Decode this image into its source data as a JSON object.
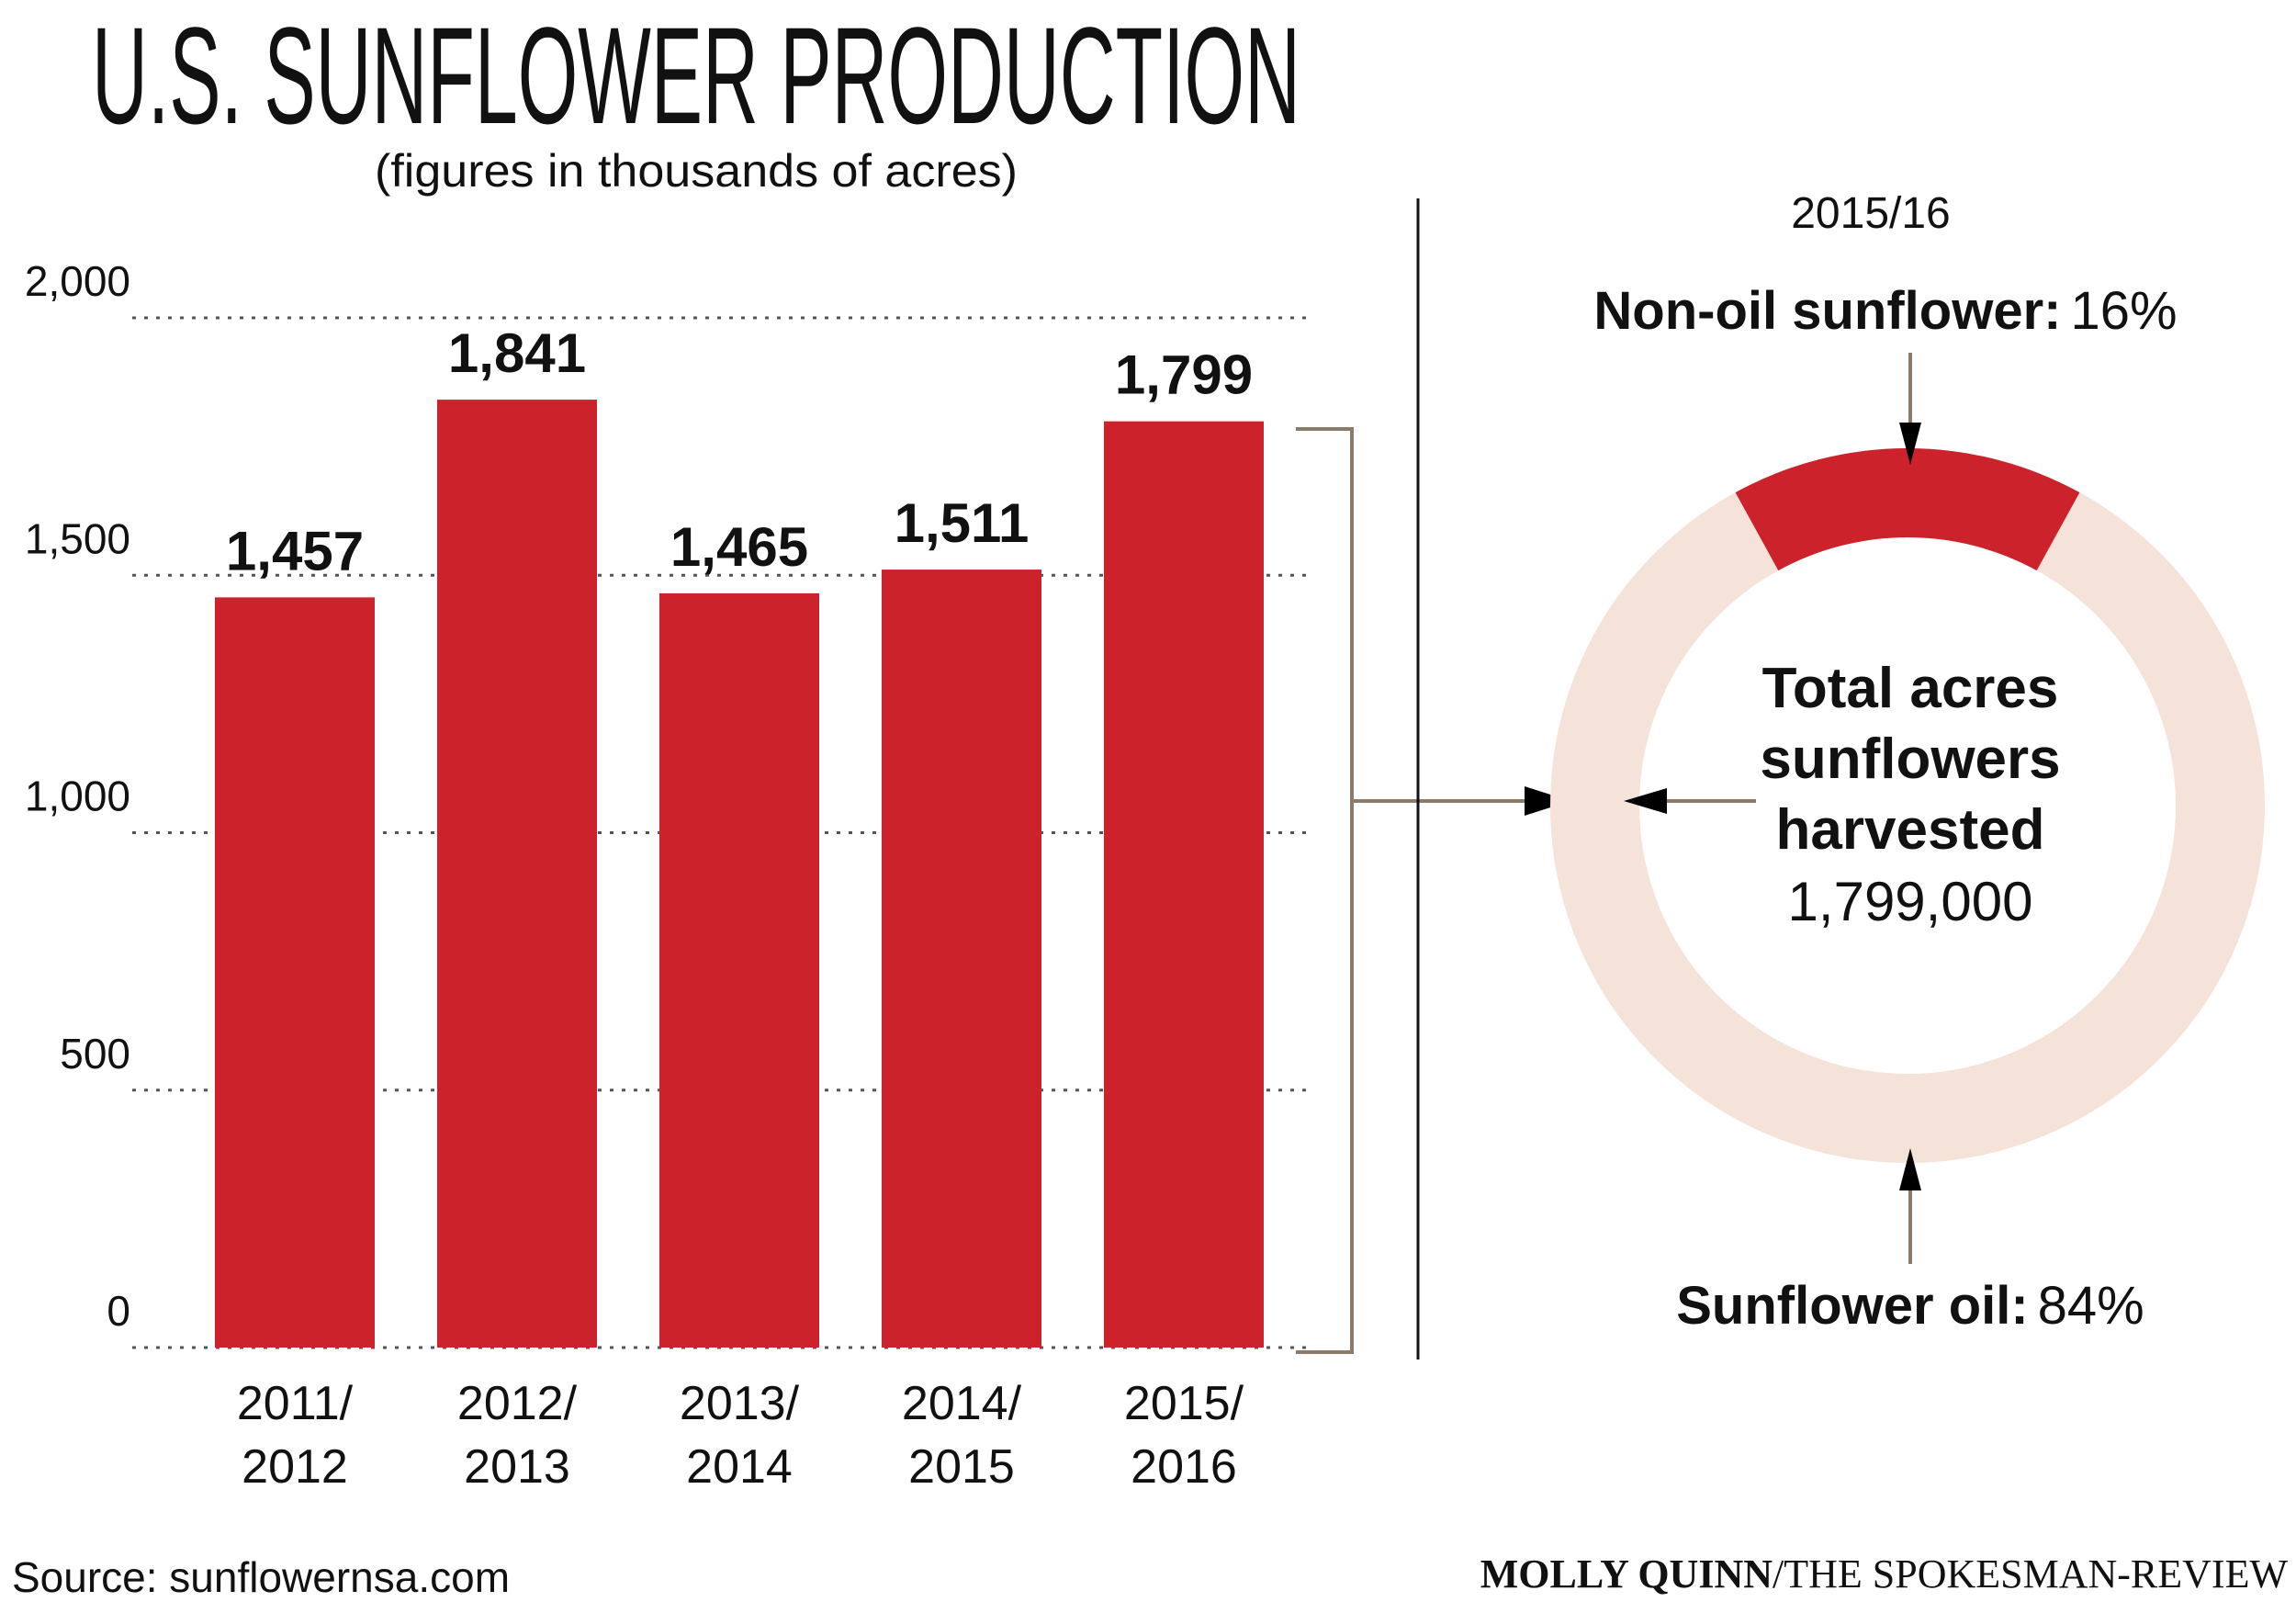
{
  "title": "U.S. SUNFLOWER PRODUCTION",
  "subtitle": "(figures in thousands of acres)",
  "source": "Source: sunflowernsa.com",
  "credit": {
    "name": "MOLLY QUINN",
    "outlet": "/THE SPOKESMAN-REVIEW"
  },
  "colors": {
    "bar": "#cc222b",
    "ring": "#f5e3d9",
    "connector": "#8c7b6b"
  },
  "chart_data": [
    {
      "type": "bar",
      "categories": [
        [
          "2011/",
          "2012"
        ],
        [
          "2012/",
          "2013"
        ],
        [
          "2013/",
          "2014"
        ],
        [
          "2014/",
          "2015"
        ],
        [
          "2015/",
          "2016"
        ]
      ],
      "values": [
        1457,
        1841,
        1465,
        1511,
        1799
      ],
      "value_labels": [
        "1,457",
        "1,841",
        "1,465",
        "1,511",
        "1,799"
      ],
      "ylim": [
        0,
        2000
      ],
      "yticks": [
        0,
        500,
        1000,
        1500,
        2000
      ],
      "ytick_labels": [
        "0",
        "500",
        "1,000",
        "1,500",
        "2,000"
      ],
      "grid": true
    },
    {
      "type": "pie",
      "style": "donut",
      "title": "2015/16",
      "slices": [
        {
          "label": "Non-oil sunflower:",
          "value_label": "16%",
          "value": 16
        },
        {
          "label": "Sunflower oil:",
          "value_label": "84%",
          "value": 84
        }
      ],
      "center_lines": [
        "Total acres",
        "sunflowers",
        "harvested"
      ],
      "center_value": "1,799,000"
    }
  ]
}
